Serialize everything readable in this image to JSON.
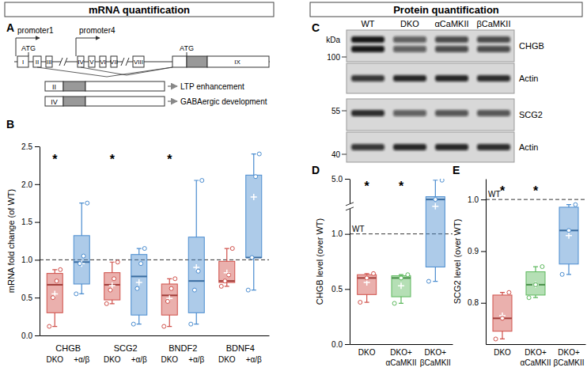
{
  "headers": [
    "mRNA quantification",
    "Protein quantification"
  ],
  "panel_labels": [
    "A",
    "B",
    "C",
    "D",
    "E"
  ],
  "gene_diagram": {
    "promoters": [
      "promoter1",
      "promoter4"
    ],
    "start_codons": [
      "ATG",
      "ATG"
    ],
    "exons": [
      "I",
      "II",
      "III",
      "IV",
      "V",
      "VI",
      "VII",
      "VIII",
      "IX"
    ],
    "transcripts": [
      {
        "exon": "II",
        "role": "LTP enhancement"
      },
      {
        "exon": "IV",
        "role": "GABAergic development"
      }
    ]
  },
  "western_blot": {
    "unit": "kDa",
    "lanes": [
      "WT",
      "DKO",
      "αCaMKII",
      "βCaMKII"
    ],
    "markers": [
      100,
      55,
      40
    ],
    "blots": [
      "CHGB",
      "Actin",
      "SCG2",
      "Actin"
    ]
  },
  "chart_data": [
    {
      "type": "box",
      "y_label": "mRNA fold change (of WT)",
      "categories": [
        "CHGB",
        "SCG2",
        "BNDF2",
        "BDNF4"
      ],
      "series": [
        {
          "name": "DKO",
          "color": "#d0504a",
          "boxes": [
            {
              "low": 0.12,
              "q1": 0.3,
              "median": 0.67,
              "q3": 0.82,
              "high": 0.87,
              "mean": 0.55,
              "points": [
                0.12,
                0.5,
                0.72,
                0.87
              ]
            },
            {
              "low": 0.42,
              "q1": 0.47,
              "median": 0.67,
              "q3": 0.83,
              "high": 0.97,
              "mean": 0.66,
              "points": [
                0.42,
                0.6,
                0.75,
                0.97
              ]
            },
            {
              "low": 0.12,
              "q1": 0.27,
              "median": 0.53,
              "q3": 0.68,
              "high": 0.75,
              "mean": 0.49,
              "points": [
                0.12,
                0.45,
                0.62,
                0.75
              ]
            },
            {
              "low": 0.65,
              "q1": 0.7,
              "median": 0.72,
              "q3": 0.98,
              "high": 1.15,
              "mean": 0.83,
              "points": [
                0.65,
                0.72,
                0.8,
                1.15
              ]
            }
          ]
        },
        {
          "name": "+α/β",
          "color": "#4a8ccf",
          "boxes": [
            {
              "low": 0.55,
              "q1": 0.68,
              "median": 0.97,
              "q3": 1.32,
              "high": 1.75,
              "mean": 0.95,
              "points": [
                0.55,
                0.95,
                1.05,
                1.75
              ]
            },
            {
              "low": 0.15,
              "q1": 0.27,
              "median": 0.78,
              "q3": 1.07,
              "high": 1.15,
              "mean": 0.7,
              "points": [
                0.15,
                0.62,
                0.95,
                1.15
              ]
            },
            {
              "low": 0.15,
              "q1": 0.3,
              "median": 0.72,
              "q3": 1.3,
              "high": 2.05,
              "mean": 0.9,
              "points": [
                0.15,
                0.6,
                0.85,
                2.05
              ]
            },
            {
              "low": 0.6,
              "q1": 1.03,
              "median": 1.03,
              "q3": 2.12,
              "high": 2.4,
              "mean": 1.83,
              "points": [
                0.6,
                1.03,
                2.1,
                2.4
              ]
            }
          ]
        }
      ],
      "ylim": [
        0,
        2.5
      ],
      "yticks": [
        {
          "value": 0,
          "label": "0.0"
        },
        0.5,
        {
          "value": 1,
          "label": "1.0"
        },
        1.5,
        {
          "value": 2,
          "label": "2.0"
        },
        2.5
      ],
      "reference_line": 1,
      "annotations": [
        {
          "text": "*",
          "category": "CHGB",
          "series": "DKO",
          "y": 2.35
        },
        {
          "text": "*",
          "category": "SCG2",
          "series": "DKO",
          "y": 2.35
        },
        {
          "text": "*",
          "category": "BNDF2",
          "series": "DKO",
          "y": 2.35
        }
      ]
    },
    {
      "type": "box",
      "y_label": "CHGB level (over WT)",
      "categories": [
        "DKO",
        "DKO+\nαCaMKII",
        "DKO+\nβCaMKII"
      ],
      "series": [
        {
          "colors": [
            "#d0504a",
            "#5cb85c",
            "#4a8ccf"
          ],
          "boxes": [
            {
              "low": 0.38,
              "q1": 0.45,
              "median": 0.6,
              "q3": 0.63,
              "high": 0.64,
              "mean": 0.56,
              "points": [
                0.38,
                0.6,
                0.64
              ]
            },
            {
              "low": 0.37,
              "q1": 0.43,
              "median": 0.6,
              "q3": 0.62,
              "high": 0.63,
              "mean": 0.53,
              "points": [
                0.37,
                0.6,
                0.63
              ]
            },
            {
              "low": 0.57,
              "q1": 0.7,
              "median": 3.5,
              "q3": 3.7,
              "high": 4.9,
              "mean": 3.0,
              "points": [
                0.57,
                3.5,
                4.9
              ]
            }
          ]
        }
      ],
      "ylim": [
        0,
        5
      ],
      "yticks": [
        {
          "value": 0,
          "label": "0.0"
        },
        0.5,
        {
          "value": 1,
          "label": "1.0"
        },
        {
          "value": 5,
          "label": "5.0"
        }
      ],
      "reference_line": 1,
      "reference_label": "WT",
      "annotations": [
        {
          "text": "*",
          "category": "DKO",
          "y": 4.6
        },
        {
          "text": "*",
          "category": "DKO+\nαCaMKII",
          "y": 4.6
        }
      ]
    },
    {
      "type": "box",
      "y_label": "SCG2 level (over WT)",
      "categories": [
        "DKO",
        "DKO+\nαCaMKII",
        "DKO+\nβCaMKII"
      ],
      "series": [
        {
          "colors": [
            "#d0504a",
            "#5cb85c",
            "#4a8ccf"
          ],
          "boxes": [
            {
              "low": 0.73,
              "q1": 0.745,
              "median": 0.77,
              "q3": 0.815,
              "high": 0.82,
              "mean": 0.775,
              "points": [
                0.73,
                0.77,
                0.82
              ]
            },
            {
              "low": 0.81,
              "q1": 0.815,
              "median": 0.835,
              "q3": 0.86,
              "high": 0.87,
              "mean": 0.835,
              "points": [
                0.81,
                0.835,
                0.87
              ]
            },
            {
              "low": 0.855,
              "q1": 0.875,
              "median": 0.94,
              "q3": 0.985,
              "high": 0.99,
              "mean": 0.93,
              "points": [
                0.855,
                0.94,
                0.99
              ]
            }
          ]
        }
      ],
      "ylim": [
        0.72,
        1.04
      ],
      "yticks": [
        0.8,
        0.9,
        {
          "value": 1,
          "label": "1.0"
        }
      ],
      "reference_line": 1,
      "reference_label": "WT",
      "annotations": [
        {
          "text": "*",
          "category": "DKO",
          "y": 1.02
        },
        {
          "text": "*",
          "category": "DKO+\nαCaMKII",
          "y": 1.02
        }
      ]
    }
  ]
}
